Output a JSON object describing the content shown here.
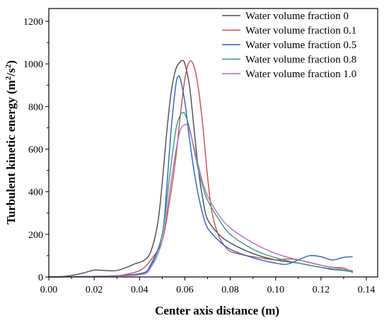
{
  "chart_data": {
    "type": "line",
    "xlabel": "Center axis distance (m)",
    "ylabel_main": "Turbulent kinetic energy (m",
    "ylabel_sup1": "2",
    "ylabel_mid": "/s",
    "ylabel_sup2": "2",
    "ylabel_end": ")",
    "xlim": [
      0.0,
      0.145
    ],
    "ylim": [
      0,
      1260
    ],
    "xticks": [
      0.0,
      0.02,
      0.04,
      0.06,
      0.08,
      0.1,
      0.12,
      0.14
    ],
    "xtick_labels": [
      "0.00",
      "0.02",
      "0.04",
      "0.06",
      "0.08",
      "0.10",
      "0.12",
      "0.14"
    ],
    "yticks": [
      0,
      200,
      400,
      600,
      800,
      1000,
      1200
    ],
    "ytick_labels": [
      "0",
      "200",
      "400",
      "600",
      "800",
      "1000",
      "1200"
    ],
    "grid": false,
    "legend_position": "top-right",
    "series": [
      {
        "name": "Water volume fraction 0",
        "color": "#4a4a4a",
        "x": [
          0.0,
          0.008,
          0.015,
          0.02,
          0.025,
          0.03,
          0.035,
          0.038,
          0.042,
          0.045,
          0.048,
          0.05,
          0.052,
          0.054,
          0.056,
          0.058,
          0.059,
          0.06,
          0.062,
          0.064,
          0.066,
          0.068,
          0.07,
          0.075,
          0.08,
          0.09,
          0.1,
          0.11,
          0.12,
          0.13,
          0.134
        ],
        "y": [
          0,
          4,
          18,
          32,
          30,
          30,
          48,
          62,
          78,
          120,
          250,
          440,
          680,
          870,
          975,
          1010,
          1016,
          1000,
          900,
          700,
          500,
          360,
          270,
          200,
          160,
          110,
          80,
          65,
          45,
          30,
          25
        ]
      },
      {
        "name": "Water volume fraction 0.1",
        "color": "#c0504d",
        "x": [
          0.0,
          0.02,
          0.03,
          0.04,
          0.045,
          0.05,
          0.053,
          0.056,
          0.058,
          0.06,
          0.062,
          0.064,
          0.066,
          0.068,
          0.07,
          0.072,
          0.075,
          0.078,
          0.08,
          0.085,
          0.09,
          0.1,
          0.105,
          0.11,
          0.12,
          0.125,
          0.13,
          0.134
        ],
        "y": [
          0,
          2,
          5,
          30,
          80,
          170,
          340,
          560,
          760,
          930,
          1010,
          990,
          880,
          700,
          470,
          300,
          190,
          140,
          120,
          105,
          95,
          80,
          85,
          80,
          55,
          45,
          42,
          20
        ]
      },
      {
        "name": "Water volume fraction 0.5",
        "color": "#2f5fc4",
        "x": [
          0.0,
          0.02,
          0.04,
          0.045,
          0.05,
          0.052,
          0.054,
          0.056,
          0.057,
          0.058,
          0.06,
          0.062,
          0.064,
          0.066,
          0.068,
          0.07,
          0.075,
          0.08,
          0.09,
          0.1,
          0.105,
          0.11,
          0.115,
          0.12,
          0.125,
          0.13,
          0.134
        ],
        "y": [
          0,
          3,
          15,
          60,
          200,
          420,
          700,
          900,
          940,
          930,
          820,
          650,
          500,
          380,
          290,
          230,
          170,
          130,
          90,
          65,
          60,
          80,
          100,
          95,
          80,
          92,
          95
        ]
      },
      {
        "name": "Water volume fraction 0.8",
        "color": "#3a9a6e",
        "x": [
          0.0,
          0.02,
          0.04,
          0.045,
          0.05,
          0.053,
          0.056,
          0.058,
          0.059,
          0.06,
          0.062,
          0.064,
          0.066,
          0.068,
          0.07,
          0.075,
          0.08,
          0.09,
          0.1,
          0.11,
          0.12,
          0.125,
          0.13,
          0.134
        ],
        "y": [
          0,
          3,
          12,
          50,
          200,
          450,
          690,
          760,
          770,
          765,
          700,
          600,
          500,
          420,
          360,
          270,
          200,
          130,
          90,
          65,
          45,
          35,
          30,
          25
        ]
      },
      {
        "name": "Water volume fraction 1.0",
        "color": "#b070d0",
        "x": [
          0.0,
          0.02,
          0.04,
          0.045,
          0.05,
          0.053,
          0.056,
          0.058,
          0.06,
          0.061,
          0.062,
          0.064,
          0.066,
          0.068,
          0.07,
          0.075,
          0.08,
          0.09,
          0.1,
          0.11,
          0.12,
          0.125,
          0.13,
          0.134
        ],
        "y": [
          0,
          3,
          10,
          45,
          170,
          380,
          590,
          690,
          715,
          712,
          690,
          610,
          520,
          440,
          380,
          290,
          230,
          160,
          110,
          80,
          55,
          45,
          35,
          30
        ]
      }
    ]
  }
}
